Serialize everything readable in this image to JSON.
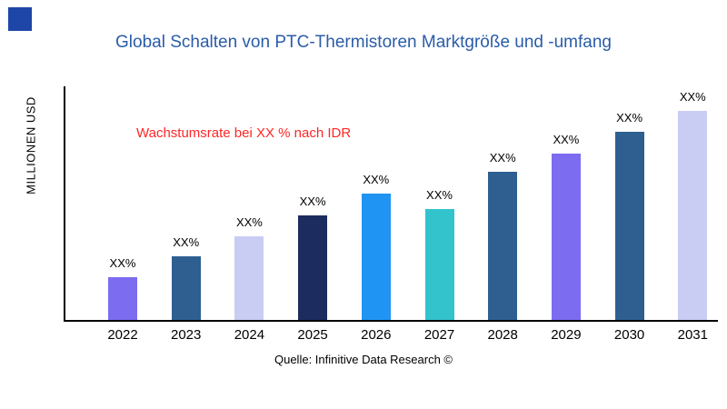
{
  "title": "Global Schalten von PTC-Thermistoren Marktgröße und -umfang",
  "annotation": "Wachstumsrate bei XX % nach IDR",
  "source": "Quelle: Infinitive Data Research ©",
  "ylabel": "MILLIONEN USD",
  "colors": {
    "title": "#2a5ca9",
    "annotation": "#ff2626",
    "axis": "#000000",
    "logo": "#1e46a8"
  },
  "chart_data": {
    "type": "bar",
    "title": "Global Schalten von PTC-Thermistoren Marktgröße und -umfang",
    "xlabel": "",
    "ylabel": "MILLIONEN USD",
    "categories": [
      "2022",
      "2023",
      "2024",
      "2025",
      "2026",
      "2027",
      "2028",
      "2029",
      "2030",
      "2031"
    ],
    "values": [
      48,
      71,
      93,
      116,
      141,
      123,
      165,
      185,
      209,
      233
    ],
    "value_labels": [
      "XX%",
      "XX%",
      "XX%",
      "XX%",
      "XX%",
      "XX%",
      "XX%",
      "XX%",
      "XX%",
      "XX%"
    ],
    "bar_colors": [
      "#7b6cf0",
      "#2e5f90",
      "#c9cdf4",
      "#1c2c5e",
      "#2094f3",
      "#33c3cc",
      "#2e5f90",
      "#7b6cf0",
      "#2e5f90",
      "#c9cdf4"
    ],
    "ylim": [
      0,
      260
    ],
    "grid": false,
    "legend": false,
    "annotation": "Wachstumsrate bei XX % nach IDR",
    "source": "Quelle: Infinitive Data Research ©"
  }
}
